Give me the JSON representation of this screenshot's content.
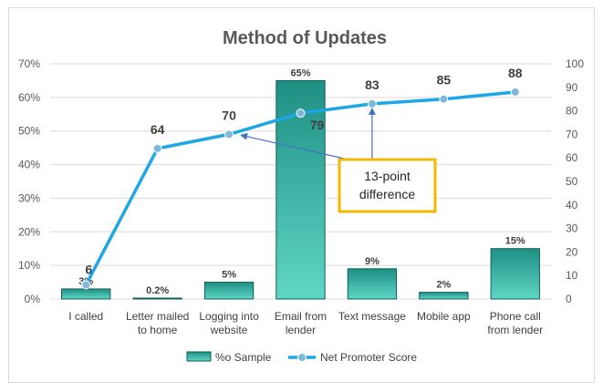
{
  "chart_data": {
    "type": "bar",
    "title": "Method of Updates",
    "categories": [
      [
        "I called"
      ],
      [
        "Letter mailed",
        "to home"
      ],
      [
        "Logging into",
        "website"
      ],
      [
        "Email from",
        "lender"
      ],
      [
        "Text message"
      ],
      [
        "Mobile app"
      ],
      [
        "Phone call",
        "from lender"
      ]
    ],
    "series": [
      {
        "name": "%o Sample",
        "type": "bar",
        "axis": "left",
        "values": [
          3,
          0.2,
          5,
          65,
          9,
          2,
          15
        ],
        "labels": [
          "3%",
          "0.2%",
          "5%",
          "65%",
          "9%",
          "2%",
          "15%"
        ]
      },
      {
        "name": "Net Promoter Score",
        "type": "line",
        "axis": "right",
        "values": [
          6,
          64,
          70,
          79,
          83,
          85,
          88
        ],
        "labels": [
          "6",
          "64",
          "70",
          "79",
          "83",
          "85",
          "88"
        ]
      }
    ],
    "y_left": {
      "min": 0,
      "max": 70,
      "step": 10,
      "ticks": [
        "0%",
        "10%",
        "20%",
        "30%",
        "40%",
        "50%",
        "60%",
        "70%"
      ]
    },
    "y_right": {
      "min": 0,
      "max": 100,
      "step": 10,
      "ticks": [
        "0",
        "10",
        "20",
        "30",
        "40",
        "50",
        "60",
        "70",
        "80",
        "90",
        "100"
      ]
    },
    "grid": true,
    "legend": "bottom",
    "annotation": {
      "lines": [
        "13-point",
        "difference"
      ],
      "from_category_index": 4,
      "to_category_index": 2
    },
    "colors": {
      "bar_top": "#1f8f84",
      "bar_bottom": "#5fd6c6",
      "bar_edge": "#0e5e56",
      "line": "#1ea7e6",
      "marker": "#7fb8d9",
      "arrow": "#4472c4",
      "annotation_border": "#f5b800",
      "grid": "#d9d9d9"
    }
  }
}
